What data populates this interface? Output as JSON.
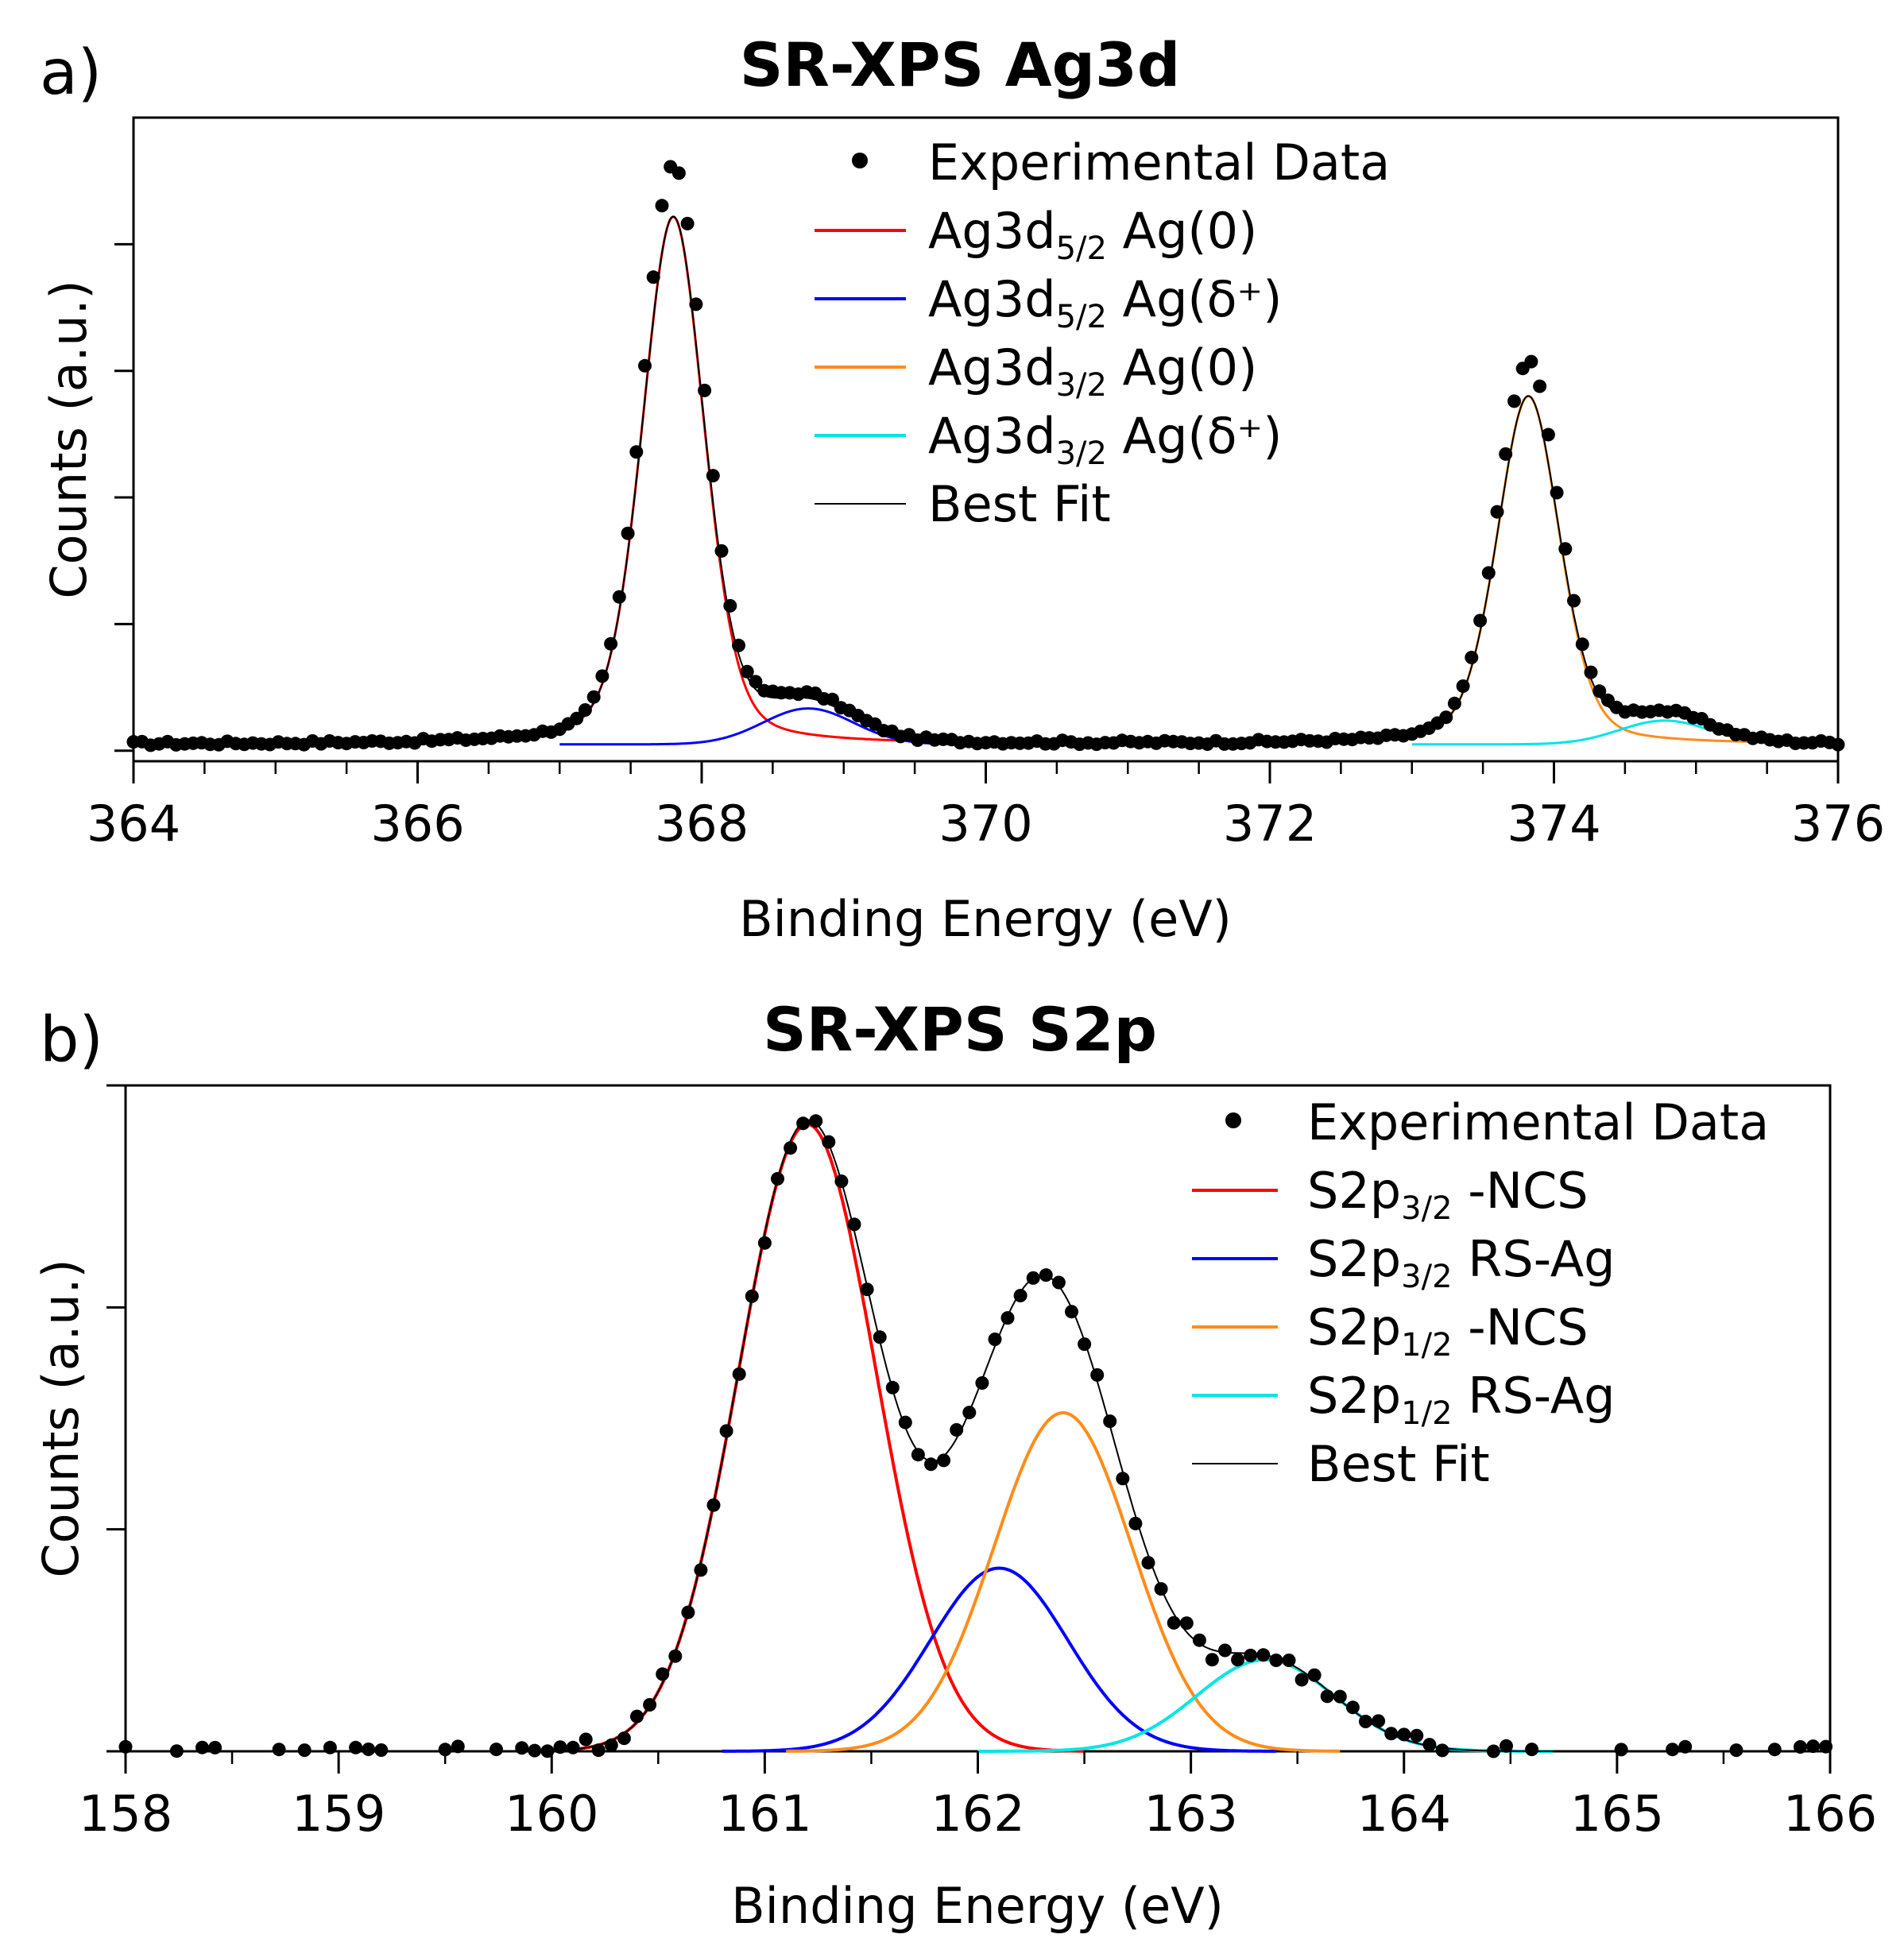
{
  "chart_data": [
    {
      "type": "scatter",
      "panel_label": "a)",
      "title": "SR-XPS Ag3d",
      "xlabel": "Binding Energy (eV)",
      "ylabel": "Counts (a.u.)",
      "xlim": [
        364,
        376
      ],
      "ylim": [
        -0.02,
        1.2
      ],
      "x_ticks": [
        364,
        366,
        368,
        370,
        372,
        374,
        376
      ],
      "x_tick_labels": [
        "364",
        "366",
        "368",
        "370",
        "372",
        "374",
        "376"
      ],
      "x_minor_step": 0.5,
      "y_ticks": [
        0,
        0.24,
        0.48,
        0.72,
        0.96
      ],
      "y_tick_labels": [
        "",
        "",
        "",
        "",
        ""
      ],
      "legend_position": "top-center",
      "legend": [
        {
          "kind": "marker",
          "label": "Experimental Data",
          "color": "#000000"
        },
        {
          "kind": "line",
          "pre": "Ag3d",
          "sub": "5/2",
          "post": " Ag(0)",
          "color": "#ff0000"
        },
        {
          "kind": "line",
          "pre": "Ag3d",
          "sub": "5/2",
          "post": " Ag(δ⁺)",
          "color": "#0000ff"
        },
        {
          "kind": "line",
          "pre": "Ag3d",
          "sub": "3/2",
          "post": " Ag(0)",
          "color": "#ff8c1a"
        },
        {
          "kind": "line",
          "pre": "Ag3d",
          "sub": "3/2",
          "post": " Ag(δ⁺)",
          "color": "#00e5e5"
        },
        {
          "kind": "line",
          "label": "Best Fit",
          "color": "#000000"
        }
      ],
      "baseline": 0.012,
      "series": [
        {
          "name": "Ag3d5/2 Ag(0)",
          "shape": "voigt",
          "center": 367.8,
          "amplitude": 1.0,
          "fwhm": 0.52,
          "range": [
            366.3,
            369.6
          ],
          "color": "#ff0000"
        },
        {
          "name": "Ag3d5/2 Ag(δ+)",
          "shape": "gauss",
          "center": 368.75,
          "amplitude": 0.068,
          "fwhm": 0.75,
          "range": [
            367.0,
            369.8
          ],
          "color": "#0000ff"
        },
        {
          "name": "Ag3d3/2 Ag(0)",
          "shape": "voigt",
          "center": 373.82,
          "amplitude": 0.66,
          "fwhm": 0.52,
          "range": [
            372.3,
            375.4
          ],
          "color": "#ff8c1a"
        },
        {
          "name": "Ag3d3/2 Ag(δ+)",
          "shape": "gauss",
          "center": 374.78,
          "amplitude": 0.045,
          "fwhm": 0.75,
          "range": [
            373.0,
            375.4
          ],
          "color": "#00e5e5"
        }
      ],
      "best_fit_range": [
        366.3,
        375.4
      ],
      "experimental": {
        "x_start": 364.0,
        "x_end": 376.0,
        "step": 0.06,
        "scale": 1.1,
        "noise": 0.004
      }
    },
    {
      "type": "scatter",
      "panel_label": "b)",
      "title": "SR-XPS S2p",
      "xlabel": "Binding Energy (eV)",
      "ylabel": "Counts (a.u.)",
      "xlim": [
        158,
        166
      ],
      "ylim": [
        0,
        1.2
      ],
      "x_ticks": [
        158,
        159,
        160,
        161,
        162,
        163,
        164,
        165,
        166
      ],
      "x_tick_labels": [
        "158",
        "159",
        "160",
        "161",
        "162",
        "163",
        "164",
        "165",
        "166"
      ],
      "x_minor_step": 0.5,
      "y_ticks": [
        0,
        0.4,
        0.8,
        1.2
      ],
      "y_tick_labels": [
        "",
        "",
        "",
        ""
      ],
      "legend_position": "top-right",
      "legend": [
        {
          "kind": "marker",
          "label": "Experimental Data",
          "color": "#000000"
        },
        {
          "kind": "line",
          "pre": "S2p",
          "sub": "3/2",
          "post": " -NCS",
          "color": "#ff0000"
        },
        {
          "kind": "line",
          "pre": "S2p",
          "sub": "3/2",
          "post": " RS-Ag",
          "color": "#0000ff"
        },
        {
          "kind": "line",
          "pre": "S2p",
          "sub": "1/2",
          "post": " -NCS",
          "color": "#ff8c1a"
        },
        {
          "kind": "line",
          "pre": "S2p",
          "sub": "1/2",
          "post": " RS-Ag",
          "color": "#00e5e5"
        },
        {
          "kind": "line",
          "label": "Best Fit",
          "color": "#000000"
        }
      ],
      "baseline": 0.0,
      "series": [
        {
          "name": "S2p3/2 -NCS",
          "shape": "gauss",
          "center": 161.2,
          "amplitude": 1.13,
          "fwhm": 0.76,
          "range": [
            160.1,
            162.5
          ],
          "color": "#ff0000"
        },
        {
          "name": "S2p3/2 RS-Ag",
          "shape": "gauss",
          "center": 162.1,
          "amplitude": 0.33,
          "fwhm": 0.76,
          "range": [
            160.8,
            163.4
          ],
          "color": "#0000ff"
        },
        {
          "name": "S2p1/2 -NCS",
          "shape": "gauss",
          "center": 162.4,
          "amplitude": 0.61,
          "fwhm": 0.76,
          "range": [
            161.1,
            163.7
          ],
          "color": "#ff8c1a"
        },
        {
          "name": "S2p1/2 RS-Ag",
          "shape": "gauss",
          "center": 163.35,
          "amplitude": 0.165,
          "fwhm": 0.76,
          "range": [
            162.0,
            164.7
          ],
          "color": "#00e5e5"
        }
      ],
      "best_fit_range": [
        160.1,
        164.7
      ],
      "experimental": {
        "x_start": 158.0,
        "x_end": 166.0,
        "step": 0.06,
        "scale": 1.0,
        "noise": 0.018
      }
    }
  ]
}
